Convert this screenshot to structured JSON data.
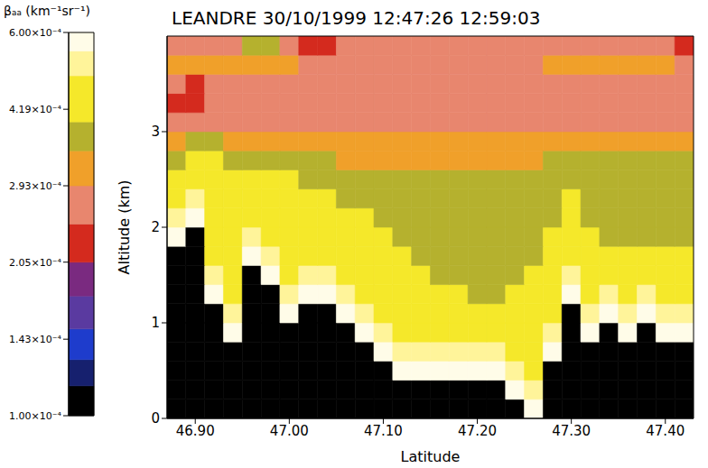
{
  "chart_data": {
    "type": "heatmap",
    "title": "LEANDRE 30/10/1999 12:47:26 12:59:03",
    "x_label": "Latitude",
    "y_label": "Altitude (km)",
    "xlim": [
      46.87,
      47.43
    ],
    "xticks": [
      {
        "value": 46.9,
        "label": "46.90"
      },
      {
        "value": 47.0,
        "label": "47.00"
      },
      {
        "value": 47.1,
        "label": "47.10"
      },
      {
        "value": 47.2,
        "label": "47.20"
      },
      {
        "value": 47.3,
        "label": "47.30"
      },
      {
        "value": 47.4,
        "label": "47.40"
      }
    ],
    "ylim": [
      0,
      4
    ],
    "yticks": [
      0,
      1,
      2,
      3
    ],
    "x_bins": [
      46.87,
      46.89,
      46.91,
      46.93,
      46.95,
      46.97,
      46.99,
      47.01,
      47.03,
      47.05,
      47.07,
      47.09,
      47.11,
      47.13,
      47.15,
      47.17,
      47.19,
      47.21,
      47.23,
      47.25,
      47.27,
      47.29,
      47.31,
      47.33,
      47.35,
      47.37,
      47.39,
      47.41,
      47.43
    ],
    "y_bins": [
      0,
      0.2,
      0.4,
      0.6,
      0.8,
      1,
      1.2,
      1.4,
      1.6,
      1.8,
      2,
      2.2,
      2.4,
      2.6,
      2.8,
      3,
      3.2,
      3.4,
      3.6,
      3.8,
      4
    ],
    "values": [
      [
        0.0001,
        0.0001,
        0.0001,
        0.0001,
        0.0001,
        0.0001,
        0.0001,
        0.0001,
        0.0001,
        0.0001,
        0.0001,
        0.0001,
        0.0001,
        0.0001,
        0.0001,
        0.0001,
        0.0001,
        0.0001,
        0.0001,
        0.00058,
        0.0001,
        0.0001,
        0.0001,
        0.0001,
        0.0001,
        0.0001,
        0.0001,
        0.0001
      ],
      [
        0.0001,
        0.0001,
        0.0001,
        0.0001,
        0.0001,
        0.0001,
        0.0001,
        0.0001,
        0.0001,
        0.0001,
        0.0001,
        0.0001,
        0.0001,
        0.0001,
        0.0001,
        0.0001,
        0.0001,
        0.0001,
        0.00058,
        0.00052,
        0.0001,
        0.0001,
        0.0001,
        0.0001,
        0.0001,
        0.0001,
        0.0001,
        0.0001
      ],
      [
        0.0001,
        0.0001,
        0.0001,
        0.0001,
        0.0001,
        0.0001,
        0.0001,
        0.0001,
        0.0001,
        0.0001,
        0.0001,
        0.0001,
        0.00058,
        0.00058,
        0.00058,
        0.00058,
        0.00058,
        0.00058,
        0.00052,
        0.00045,
        0.0001,
        0.0001,
        0.0001,
        0.0001,
        0.0001,
        0.0001,
        0.0001,
        0.0001
      ],
      [
        0.0001,
        0.0001,
        0.0001,
        0.0001,
        0.0001,
        0.0001,
        0.0001,
        0.0001,
        0.0001,
        0.0001,
        0.0001,
        0.00058,
        0.00052,
        0.00052,
        0.00052,
        0.00052,
        0.00052,
        0.00052,
        0.00045,
        0.00045,
        0.00058,
        0.0001,
        0.0001,
        0.0001,
        0.0001,
        0.0001,
        0.0001,
        0.0001
      ],
      [
        0.0001,
        0.0001,
        0.0001,
        0.00058,
        0.0001,
        0.0001,
        0.0001,
        0.0001,
        0.0001,
        0.0001,
        0.00058,
        0.00052,
        0.00045,
        0.00045,
        0.00045,
        0.00045,
        0.00045,
        0.00045,
        0.00045,
        0.00045,
        0.00052,
        0.0001,
        0.00058,
        0.0001,
        0.00058,
        0.0001,
        0.00058,
        0.00058
      ],
      [
        0.0001,
        0.0001,
        0.0001,
        0.00052,
        0.0001,
        0.0001,
        0.00058,
        0.0001,
        0.0001,
        0.00058,
        0.00052,
        0.00045,
        0.00045,
        0.00045,
        0.00045,
        0.00045,
        0.00045,
        0.00045,
        0.00045,
        0.00045,
        0.00045,
        0.0001,
        0.00052,
        0.00058,
        0.00052,
        0.00058,
        0.00052,
        0.00052
      ],
      [
        0.0001,
        0.0001,
        0.00058,
        0.00045,
        0.0001,
        0.0001,
        0.00052,
        0.00058,
        0.00058,
        0.00052,
        0.00045,
        0.00045,
        0.00045,
        0.00045,
        0.00045,
        0.00045,
        0.00037,
        0.00037,
        0.00045,
        0.00045,
        0.00045,
        0.00058,
        0.00045,
        0.00052,
        0.00045,
        0.00052,
        0.00045,
        0.00045
      ],
      [
        0.0001,
        0.0001,
        0.00052,
        0.00045,
        0.0001,
        0.00058,
        0.00045,
        0.00052,
        0.00052,
        0.00045,
        0.00045,
        0.00045,
        0.00045,
        0.00045,
        0.00037,
        0.00037,
        0.00037,
        0.00037,
        0.00037,
        0.00045,
        0.00045,
        0.00052,
        0.00045,
        0.00045,
        0.00045,
        0.00045,
        0.00045,
        0.00045
      ],
      [
        0.0001,
        0.0001,
        0.00045,
        0.00045,
        0.00058,
        0.00052,
        0.00045,
        0.00045,
        0.00045,
        0.00045,
        0.00045,
        0.00045,
        0.00045,
        0.00037,
        0.00037,
        0.00037,
        0.00037,
        0.00037,
        0.00037,
        0.00037,
        0.00045,
        0.00045,
        0.00045,
        0.00045,
        0.00045,
        0.00045,
        0.00045,
        0.00045
      ],
      [
        0.00058,
        0.0001,
        0.00045,
        0.00045,
        0.00052,
        0.00045,
        0.00045,
        0.00045,
        0.00045,
        0.00045,
        0.00045,
        0.00045,
        0.00037,
        0.00037,
        0.00037,
        0.00037,
        0.00037,
        0.00037,
        0.00037,
        0.00037,
        0.00045,
        0.00045,
        0.00045,
        0.00037,
        0.00037,
        0.00037,
        0.00037,
        0.00037
      ],
      [
        0.00052,
        0.00058,
        0.00045,
        0.00045,
        0.00045,
        0.00045,
        0.00045,
        0.00045,
        0.00045,
        0.00045,
        0.00045,
        0.00037,
        0.00037,
        0.00037,
        0.00037,
        0.00037,
        0.00037,
        0.00037,
        0.00037,
        0.00037,
        0.00037,
        0.00045,
        0.00037,
        0.00037,
        0.00037,
        0.00037,
        0.00037,
        0.00037
      ],
      [
        0.00045,
        0.00052,
        0.00045,
        0.00045,
        0.00045,
        0.00045,
        0.00045,
        0.00045,
        0.00045,
        0.00037,
        0.00037,
        0.00037,
        0.00037,
        0.00037,
        0.00037,
        0.00037,
        0.00037,
        0.00037,
        0.00037,
        0.00037,
        0.00037,
        0.00045,
        0.00037,
        0.00037,
        0.00037,
        0.00037,
        0.00037,
        0.00037
      ],
      [
        0.00045,
        0.00045,
        0.00045,
        0.00045,
        0.00045,
        0.00045,
        0.00045,
        0.00037,
        0.00037,
        0.00037,
        0.00037,
        0.00037,
        0.00037,
        0.00037,
        0.00037,
        0.00037,
        0.00037,
        0.00037,
        0.00037,
        0.00037,
        0.00037,
        0.00037,
        0.00037,
        0.00037,
        0.00037,
        0.00037,
        0.00037,
        0.00037
      ],
      [
        0.00037,
        0.00045,
        0.00045,
        0.00037,
        0.00037,
        0.00037,
        0.00037,
        0.00037,
        0.00037,
        0.00032,
        0.00032,
        0.00032,
        0.00032,
        0.00032,
        0.00032,
        0.00032,
        0.00032,
        0.00032,
        0.00032,
        0.00032,
        0.00037,
        0.00037,
        0.00037,
        0.00037,
        0.00037,
        0.00037,
        0.00037,
        0.00037
      ],
      [
        0.00032,
        0.00037,
        0.00037,
        0.00032,
        0.00032,
        0.00032,
        0.00032,
        0.00032,
        0.00032,
        0.00032,
        0.00032,
        0.00032,
        0.00032,
        0.00032,
        0.00032,
        0.00032,
        0.00032,
        0.00032,
        0.00032,
        0.00032,
        0.00032,
        0.00032,
        0.00032,
        0.00032,
        0.00032,
        0.00032,
        0.00032,
        0.00032
      ],
      [
        0.00027,
        0.00027,
        0.00027,
        0.00027,
        0.00027,
        0.00027,
        0.00027,
        0.00027,
        0.00027,
        0.00027,
        0.00027,
        0.00027,
        0.00027,
        0.00027,
        0.00027,
        0.00027,
        0.00027,
        0.00027,
        0.00027,
        0.00027,
        0.00027,
        0.00027,
        0.00027,
        0.00027,
        0.00027,
        0.00027,
        0.00027,
        0.00027
      ],
      [
        0.00022,
        0.00022,
        0.00027,
        0.00027,
        0.00027,
        0.00027,
        0.00027,
        0.00027,
        0.00027,
        0.00027,
        0.00027,
        0.00027,
        0.00027,
        0.00027,
        0.00027,
        0.00027,
        0.00027,
        0.00027,
        0.00027,
        0.00027,
        0.00027,
        0.00027,
        0.00027,
        0.00027,
        0.00027,
        0.00027,
        0.00027,
        0.00027
      ],
      [
        0.00027,
        0.00022,
        0.00027,
        0.00027,
        0.00027,
        0.00027,
        0.00027,
        0.00027,
        0.00027,
        0.00027,
        0.00027,
        0.00027,
        0.00027,
        0.00027,
        0.00027,
        0.00027,
        0.00027,
        0.00027,
        0.00027,
        0.00027,
        0.00027,
        0.00027,
        0.00027,
        0.00027,
        0.00027,
        0.00027,
        0.00027,
        0.00027
      ],
      [
        0.00032,
        0.00032,
        0.00032,
        0.00032,
        0.00032,
        0.00032,
        0.00032,
        0.00027,
        0.00027,
        0.00027,
        0.00027,
        0.00027,
        0.00027,
        0.00027,
        0.00027,
        0.00027,
        0.00027,
        0.00027,
        0.00027,
        0.00027,
        0.00032,
        0.00032,
        0.00032,
        0.00032,
        0.00032,
        0.00032,
        0.00032,
        0.00027
      ],
      [
        0.00027,
        0.00027,
        0.00027,
        0.00027,
        0.00037,
        0.00037,
        0.00027,
        0.00022,
        0.00022,
        0.00027,
        0.00027,
        0.00027,
        0.00027,
        0.00027,
        0.00027,
        0.00027,
        0.00027,
        0.00027,
        0.00027,
        0.00027,
        0.00027,
        0.00027,
        0.00027,
        0.00027,
        0.00027,
        0.00027,
        0.00027,
        0.00022
      ]
    ],
    "colorbar": {
      "label": "βₐₐ (km⁻¹sr⁻¹)",
      "range": [
        0.0001,
        0.0006
      ],
      "log": true,
      "ticks": [
        {
          "value": 0.0001,
          "label": "1.00×10⁻⁴"
        },
        {
          "value": 0.000143,
          "label": "1.43×10⁻⁴"
        },
        {
          "value": 0.000205,
          "label": "2.05×10⁻⁴"
        },
        {
          "value": 0.000293,
          "label": "2.93×10⁻⁴"
        },
        {
          "value": 0.000419,
          "label": "4.19×10⁻⁴"
        },
        {
          "value": 0.0006,
          "label": "6.00×10⁻⁴"
        }
      ],
      "levels": [
        0.0001,
        0.000115,
        0.00013,
        0.00015,
        0.000175,
        0.000205,
        0.000245,
        0.000293,
        0.000345,
        0.000395,
        0.00049,
        0.00055,
        0.0006
      ],
      "colors": [
        "#000000",
        "#16206e",
        "#1e3ccc",
        "#5a3aa0",
        "#7a2a80",
        "#d42a1e",
        "#e8866e",
        "#f0a02a",
        "#b5b12e",
        "#f5e82a",
        "#fff49a",
        "#fffce8"
      ]
    }
  }
}
